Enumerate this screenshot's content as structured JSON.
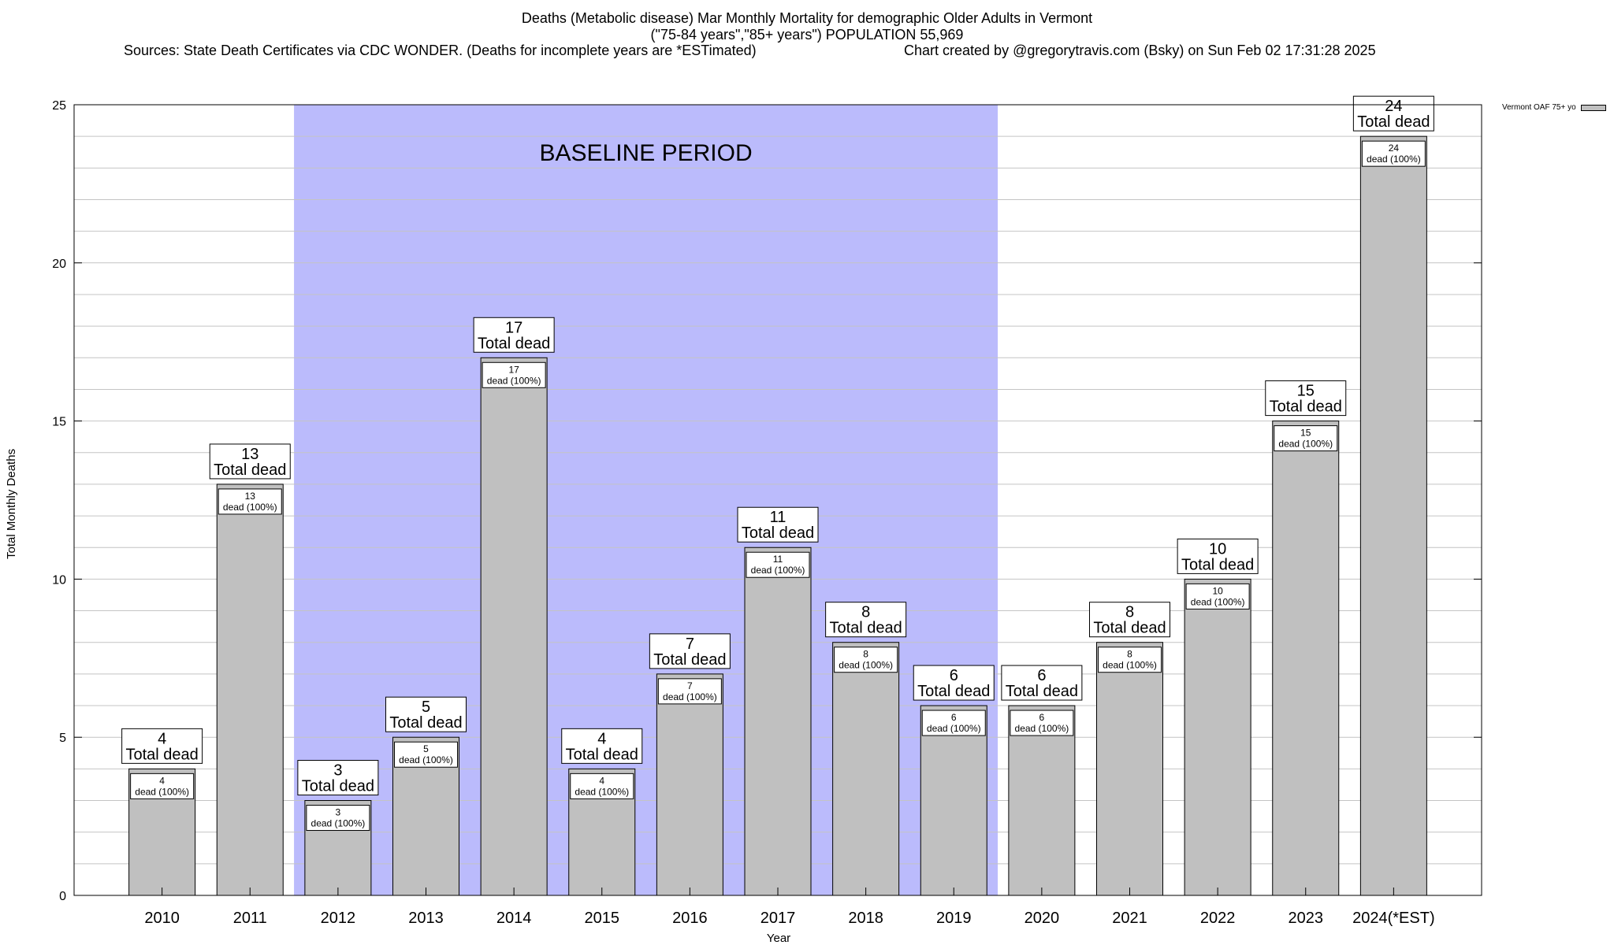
{
  "header": {
    "line1": "Deaths (Metabolic disease) Mar Monthly Mortality for demographic Older Adults in Vermont",
    "line2": "(\"75-84 years\",\"85+ years\") POPULATION 55,969",
    "line3_left": "Sources: State Death Certificates via CDC WONDER. (Deaths for incomplete years are *ESTimated)",
    "line3_right": "Chart created by @gregorytravis.com (Bsky) on Sun Feb 02 17:31:28 2025"
  },
  "chart_data": {
    "type": "bar",
    "title": "Deaths (Metabolic disease) Mar Monthly Mortality for demographic Older Adults in Vermont",
    "xlabel": "Year",
    "ylabel": "Total Monthly Deaths",
    "ylim": [
      0,
      25
    ],
    "yticks": [
      0,
      5,
      10,
      15,
      20,
      25
    ],
    "grid": true,
    "categories": [
      "2010",
      "2011",
      "2012",
      "2013",
      "2014",
      "2015",
      "2016",
      "2017",
      "2018",
      "2019",
      "2020",
      "2021",
      "2022",
      "2023",
      "2024(*EST)"
    ],
    "series": [
      {
        "name": "Vermont OAF 75+ yo",
        "color": "#c0c0c0",
        "values": [
          4,
          13,
          3,
          5,
          17,
          4,
          7,
          11,
          8,
          6,
          6,
          8,
          10,
          15,
          24
        ]
      }
    ],
    "total_label": "Total dead",
    "bar_label_suffix": "dead (100%)",
    "baseline": {
      "label": "BASELINE PERIOD",
      "from": "2012",
      "to": "2019",
      "color": "#bbbbfc"
    },
    "legend_position": "top-right"
  }
}
